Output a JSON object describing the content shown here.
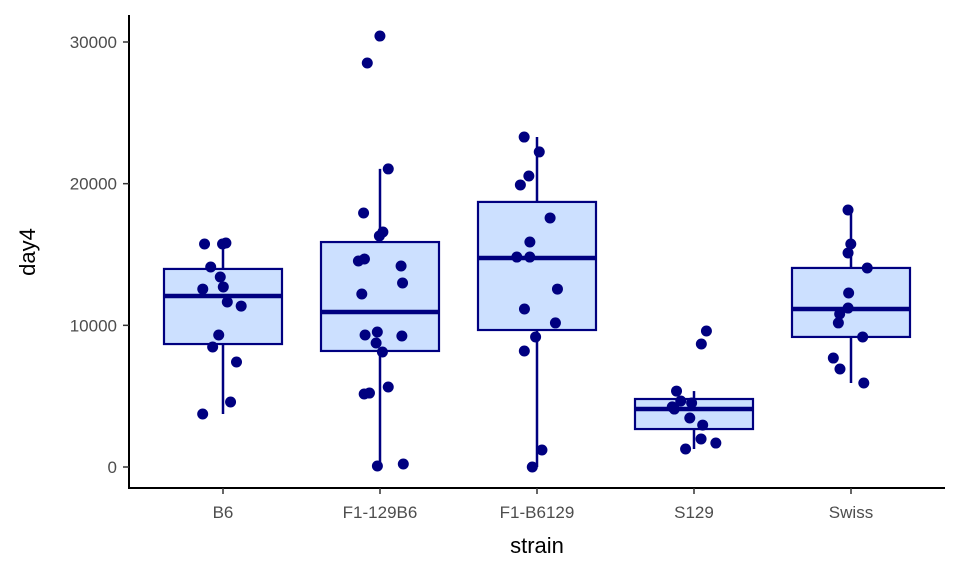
{
  "chart_data": {
    "type": "boxplot",
    "title": "",
    "xlabel": "strain",
    "ylabel": "day4",
    "ylim": [
      -1500,
      32000
    ],
    "yticks": [
      0,
      10000,
      20000,
      30000
    ],
    "ytick_labels": [
      "0",
      "10000",
      "20000",
      "30000"
    ],
    "grid": false,
    "colors": {
      "box_fill": "#cce0ff",
      "box_stroke": "#000080",
      "points": "#000080"
    },
    "categories": [
      "B6",
      "F1-129B6",
      "F1-B6129",
      "S129",
      "Swiss"
    ],
    "boxes": [
      {
        "q1": 8680,
        "median": 12070,
        "q3": 13980,
        "whisker_low": 3740,
        "whisker_high": 15740
      },
      {
        "q1": 8190,
        "median": 10940,
        "q3": 15880,
        "whisker_low": 70,
        "whisker_high": 21040
      },
      {
        "q1": 9670,
        "median": 14750,
        "q3": 18710,
        "whisker_low": 0,
        "whisker_high": 23290
      },
      {
        "q1": 2680,
        "median": 4090,
        "q3": 4800,
        "whisker_low": 1270,
        "whisker_high": 5360
      },
      {
        "q1": 9180,
        "median": 11150,
        "q3": 14050,
        "whisker_low": 5930,
        "whisker_high": 18140
      }
    ],
    "points": [
      [
        15740,
        15810,
        15740,
        14120,
        13410,
        12710,
        12560,
        11360,
        11650,
        9320,
        8470,
        7410,
        4590,
        3740
      ],
      [
        30420,
        28520,
        21040,
        17930,
        16590,
        16310,
        14680,
        14540,
        14190,
        12990,
        12210,
        9530,
        9250,
        9320,
        8750,
        8120,
        5650,
        5220,
        5150,
        210,
        70
      ],
      [
        23290,
        22240,
        20540,
        19910,
        17580,
        15880,
        14820,
        14820,
        12560,
        11150,
        10170,
        9180,
        8190,
        1200,
        0
      ],
      [
        9600,
        8680,
        5360,
        4660,
        4520,
        4090,
        4240,
        3460,
        2960,
        1980,
        1690,
        1270
      ],
      [
        18140,
        15740,
        15110,
        14050,
        12280,
        11220,
        10800,
        10170,
        9180,
        7690,
        6920,
        5930
      ]
    ]
  }
}
